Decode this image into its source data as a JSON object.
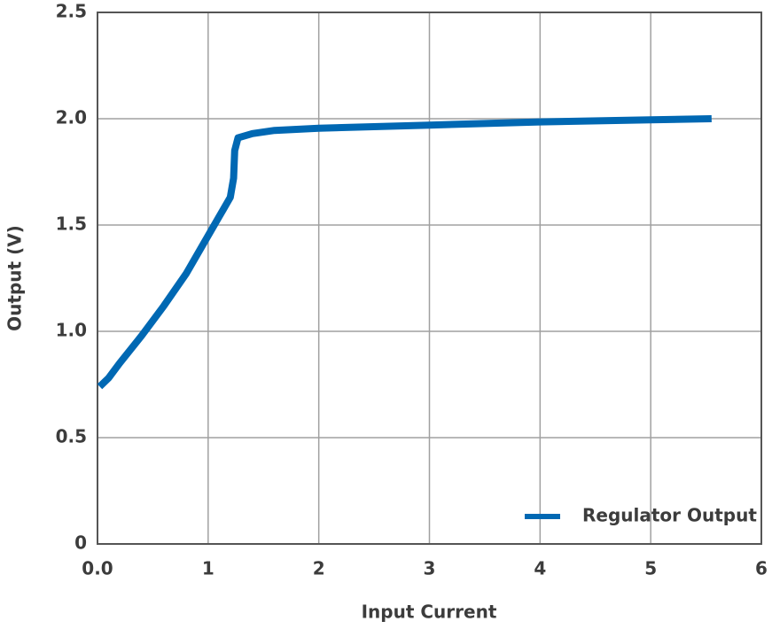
{
  "chart_data": {
    "type": "line",
    "x_label": "Input Current",
    "y_label": "Output (V)",
    "x": [
      0.02,
      0.1,
      0.2,
      0.4,
      0.6,
      0.8,
      0.9,
      1.0,
      1.1,
      1.2,
      1.23,
      1.24,
      1.27,
      1.4,
      1.6,
      2,
      3,
      4,
      5,
      5.55
    ],
    "series": [
      {
        "name": "Regulator Output",
        "color": "#0068b3",
        "values": [
          0.74,
          0.78,
          0.85,
          0.98,
          1.12,
          1.27,
          1.36,
          1.45,
          1.54,
          1.63,
          1.72,
          1.85,
          1.91,
          1.93,
          1.945,
          1.955,
          1.97,
          1.985,
          1.995,
          2.0
        ]
      }
    ],
    "xlim": [
      0,
      6
    ],
    "ylim": [
      0,
      2.5
    ],
    "xticks": [
      {
        "value": 0,
        "label": "0.0"
      },
      1,
      2,
      3,
      4,
      5,
      6
    ],
    "yticks": [
      0,
      0.5,
      {
        "value": 1,
        "label": "1.0"
      },
      1.5,
      {
        "value": 2,
        "label": "2.0"
      },
      2.5
    ],
    "grid": true,
    "legend": "lower right"
  }
}
